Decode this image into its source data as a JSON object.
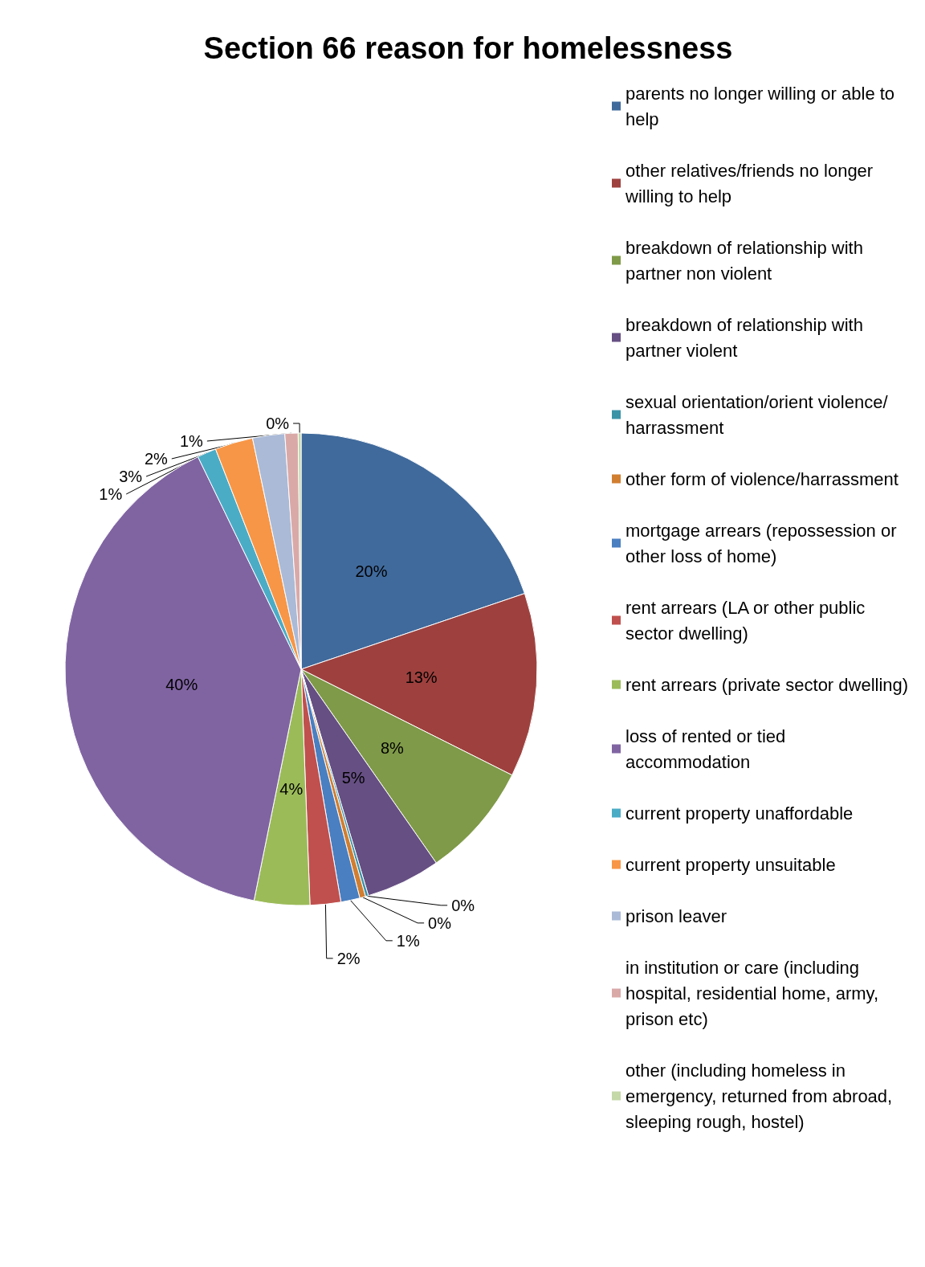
{
  "chart_data": {
    "type": "pie",
    "title": "Section 66 reason for homelessness",
    "categories": [
      "parents no longer willing or able to help",
      "other relatives/friends no longer willing to help",
      "breakdown of relationship with partner non violent",
      "breakdown of relationship with partner violent",
      "sexual orientation/orient violence/harrassment",
      "other form of violence/harrassment",
      "mortgage arrears (repossession or other loss of home)",
      "rent arrears (LA or other public sector dwelling)",
      "rent arrears (private sector dwelling)",
      "loss of rented or tied accommodation",
      "current property unaffordable",
      "current property unsuitable",
      "prison leaver",
      "in institution or care (including hospital, residential home, army, prison etc)",
      "other (including homeless in emergency, returned from abroad, sleeping rough, hostel)"
    ],
    "values": [
      19.8,
      12.6,
      7.9,
      5.1,
      0.2,
      0.4,
      1.3,
      2.1,
      3.8,
      39.6,
      1.3,
      2.6,
      2.2,
      0.9,
      0.2
    ],
    "value_labels": [
      "20%",
      "13%",
      "8%",
      "5%",
      "0%",
      "0%",
      "1%",
      "2%",
      "4%",
      "40%",
      "1%",
      "3%",
      "2%",
      "1%",
      "0%"
    ],
    "colors": [
      "#406a9c",
      "#9e413e",
      "#7f9a48",
      "#664f83",
      "#3b93a8",
      "#d17e31",
      "#4a7fc1",
      "#c0504d",
      "#9bbb59",
      "#8064a2",
      "#4bacc6",
      "#f79646",
      "#aabad7",
      "#d9a9a8",
      "#c4d8a8"
    ],
    "legend": "right"
  }
}
